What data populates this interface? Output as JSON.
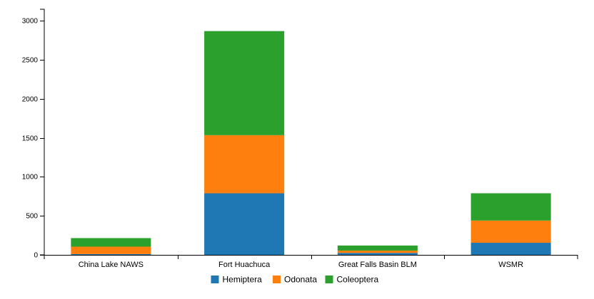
{
  "chart_data": {
    "type": "bar",
    "stacked": true,
    "title": "",
    "xlabel": "",
    "ylabel": "",
    "categories": [
      "China Lake NAWS",
      "Fort Huachuca",
      "Great Falls Basin BLM",
      "WSMR"
    ],
    "series": [
      {
        "name": "Hemiptera",
        "color": "#1f77b4",
        "values": [
          10,
          790,
          25,
          155
        ]
      },
      {
        "name": "Odonata",
        "color": "#ff7f0e",
        "values": [
          95,
          745,
          30,
          285
        ]
      },
      {
        "name": "Coleoptera",
        "color": "#2ca02c",
        "values": [
          110,
          1335,
          65,
          350
        ]
      }
    ],
    "ylim": [
      0,
      3150
    ],
    "yticks": [
      0,
      500,
      1000,
      1500,
      2000,
      2500,
      3000
    ],
    "grid": false,
    "legend_position": "bottom"
  }
}
